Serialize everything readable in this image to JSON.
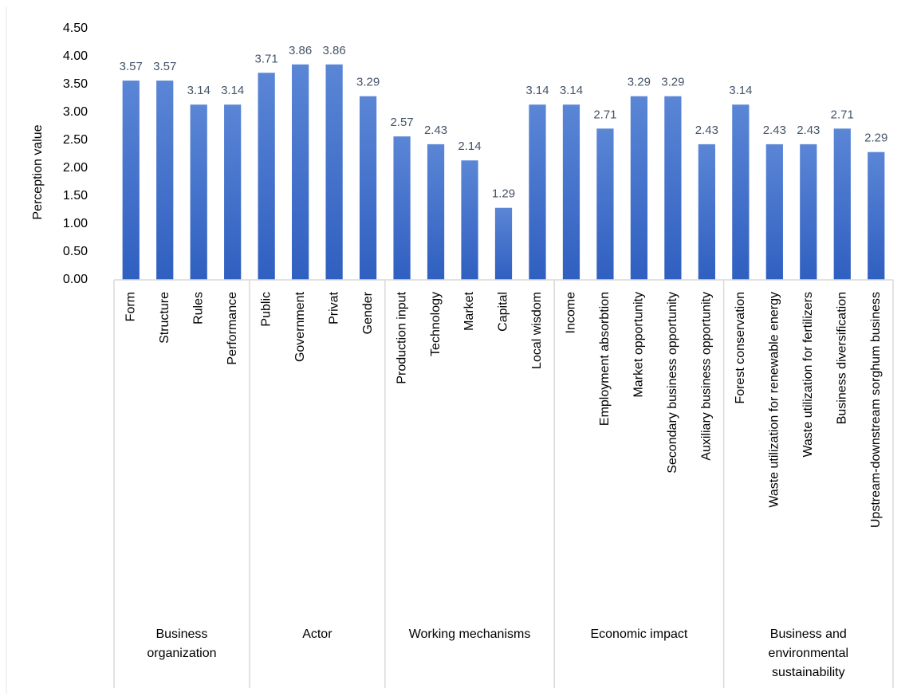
{
  "chart_data": {
    "type": "bar",
    "title": "",
    "xlabel": "",
    "ylabel": "Perception value",
    "ylim": [
      0,
      4.5
    ],
    "ytick_step": 0.5,
    "ytick_labels": [
      "0.00",
      "0.50",
      "1.00",
      "1.50",
      "2.00",
      "2.50",
      "3.00",
      "3.50",
      "4.00",
      "4.50"
    ],
    "grid": false,
    "legend": "none",
    "bar_color": "#4472c4",
    "bar_color_light": "#5b86d6",
    "bar_color_dark": "#2f5fc0",
    "data_label_color": "#44546a",
    "categories": [
      "Form",
      "Structure",
      "Rules",
      "Performance",
      "Public",
      "Government",
      "Privat",
      "Gender",
      "Production input",
      "Technology",
      "Market",
      "Capital",
      "Local wisdom",
      "Income",
      "Employment absorbtion",
      "Market opportunity",
      "Secondary business opportunity",
      "Auxiliary business opportunity",
      "Forest conservation",
      "Waste utilization for renewable energy",
      "Waste utilization for fertilizers",
      "Business diversification",
      "Upstream-downstream sorghum business"
    ],
    "values": [
      3.57,
      3.57,
      3.14,
      3.14,
      3.71,
      3.86,
      3.86,
      3.29,
      2.57,
      2.43,
      2.14,
      1.29,
      3.14,
      3.14,
      2.71,
      3.29,
      3.29,
      2.43,
      3.14,
      2.43,
      2.43,
      2.71,
      2.29
    ],
    "data_labels": [
      "3.57",
      "3.57",
      "3.14",
      "3.14",
      "3.71",
      "3.86",
      "3.86",
      "3.29",
      "2.57",
      "2.43",
      "2.14",
      "1.29",
      "3.14",
      "3.14",
      "2.71",
      "3.29",
      "3.29",
      "2.43",
      "3.14",
      "2.43",
      "2.43",
      "2.71",
      "2.29"
    ],
    "groups": [
      {
        "label_lines": [
          "Business",
          "organization"
        ],
        "count": 4
      },
      {
        "label_lines": [
          "Actor"
        ],
        "count": 4
      },
      {
        "label_lines": [
          "Working mechanisms"
        ],
        "count": 5
      },
      {
        "label_lines": [
          "Economic impact"
        ],
        "count": 5
      },
      {
        "label_lines": [
          "Business and",
          "environmental",
          "sustainability"
        ],
        "count": 5
      }
    ]
  }
}
